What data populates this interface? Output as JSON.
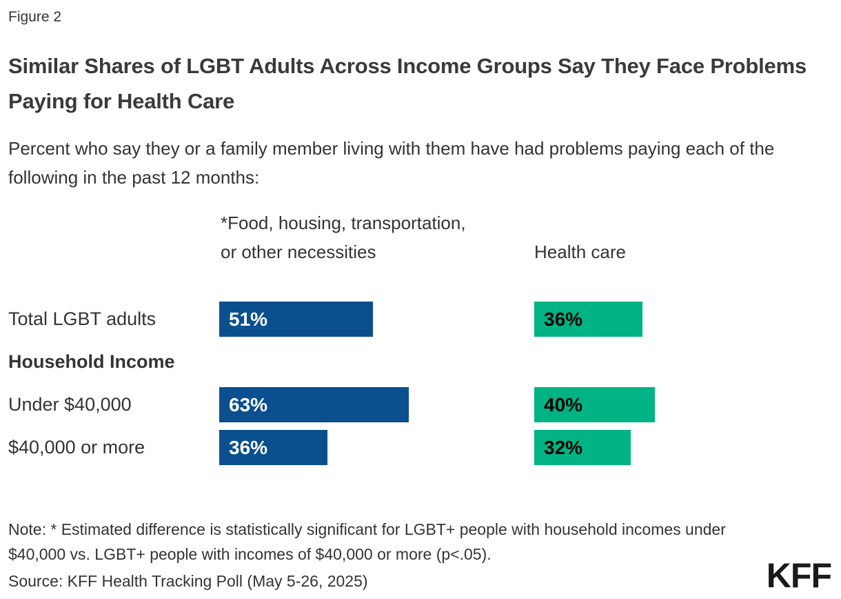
{
  "figure_label": "Figure 2",
  "title": "Similar Shares of LGBT Adults Across Income Groups Say They Face Problems Paying for Health Care",
  "subtitle": "Percent who say they or a family member living with them have had problems paying each of the following in the past 12 months:",
  "note": "Note: * Estimated difference is statistically significant for LGBT+ people with household incomes under $40,000 vs. LGBT+ people with incomes of $40,000 or more (p<.05).",
  "source": "Source: KFF Health Tracking Poll (May 5-26, 2025)",
  "logo_text": "KFF",
  "colors": {
    "necessities_bar": "#0A4F8E",
    "health_care_bar": "#00B384",
    "text": "#333333",
    "label_on_blue": "#FFFFFF",
    "label_on_green": "#000000"
  },
  "chart_data": {
    "type": "bar",
    "orientation": "horizontal",
    "categories": [
      "Total LGBT adults",
      "Under $40,000",
      "$40,000 or more"
    ],
    "group_header": "Household Income",
    "group_header_applies_to": [
      "Under $40,000",
      "$40,000 or more"
    ],
    "series": [
      {
        "name": "*Food, housing, transportation, or other necessities",
        "color": "#0A4F8E",
        "values": [
          51,
          63,
          36
        ],
        "labels": [
          "51%",
          "63%",
          "36%"
        ]
      },
      {
        "name": "Health care",
        "color": "#00B384",
        "values": [
          36,
          40,
          32
        ],
        "labels": [
          "36%",
          "40%",
          "32%"
        ]
      }
    ],
    "xlim": [
      0,
      100
    ],
    "value_label_position": "inside-left",
    "grid": false,
    "legend_position": "column-headers-above-bars"
  }
}
